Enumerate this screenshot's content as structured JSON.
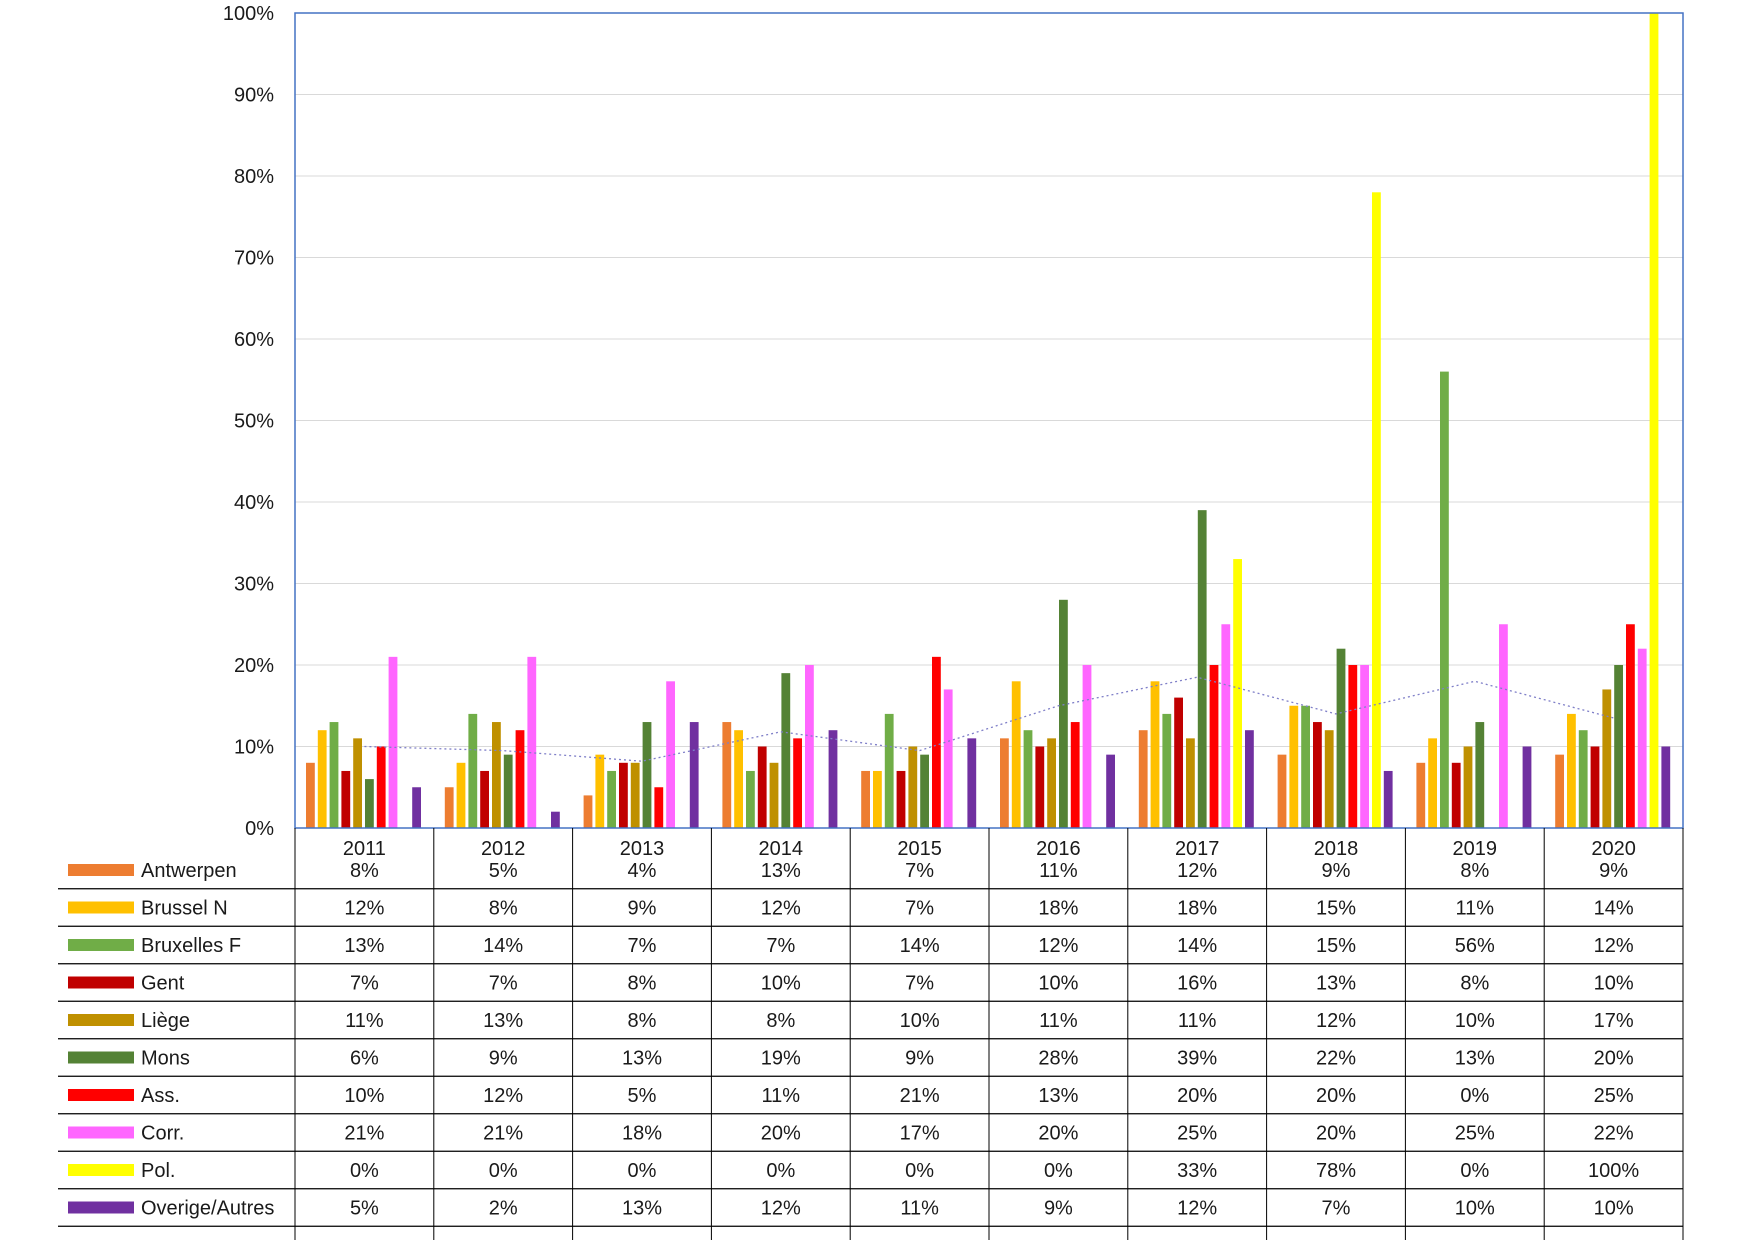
{
  "chart_data": {
    "type": "bar",
    "title": "",
    "xlabel": "",
    "ylabel": "",
    "ylim": [
      0,
      100
    ],
    "y_unit": "%",
    "y_ticks": [
      "0%",
      "10%",
      "20%",
      "30%",
      "40%",
      "50%",
      "60%",
      "70%",
      "80%",
      "90%",
      "100%"
    ],
    "grid": true,
    "legend_placement": "data-table-below",
    "categories": [
      "2011",
      "2012",
      "2013",
      "2014",
      "2015",
      "2016",
      "2017",
      "2018",
      "2019",
      "2020"
    ],
    "series": [
      {
        "name": "Antwerpen",
        "color": "#ED7D31",
        "values": [
          8,
          5,
          4,
          13,
          7,
          11,
          12,
          9,
          8,
          9
        ],
        "labels": [
          "8%",
          "5%",
          "4%",
          "13%",
          "7%",
          "11%",
          "12%",
          "9%",
          "8%",
          "9%"
        ]
      },
      {
        "name": "Brussel N",
        "color": "#FFC000",
        "values": [
          12,
          8,
          9,
          12,
          7,
          18,
          18,
          15,
          11,
          14
        ],
        "labels": [
          "12%",
          "8%",
          "9%",
          "12%",
          "7%",
          "18%",
          "18%",
          "15%",
          "11%",
          "14%"
        ]
      },
      {
        "name": "Bruxelles F",
        "color": "#70AD47",
        "values": [
          13,
          14,
          7,
          7,
          14,
          12,
          14,
          15,
          56,
          12
        ],
        "labels": [
          "13%",
          "14%",
          "7%",
          "7%",
          "14%",
          "12%",
          "14%",
          "15%",
          "56%",
          "12%"
        ]
      },
      {
        "name": "Gent",
        "color": "#C00000",
        "values": [
          7,
          7,
          8,
          10,
          7,
          10,
          16,
          13,
          8,
          10
        ],
        "labels": [
          "7%",
          "7%",
          "8%",
          "10%",
          "7%",
          "10%",
          "16%",
          "13%",
          "8%",
          "10%"
        ]
      },
      {
        "name": "Liège",
        "color": "#BF9000",
        "values": [
          11,
          13,
          8,
          8,
          10,
          11,
          11,
          12,
          10,
          17
        ],
        "labels": [
          "11%",
          "13%",
          "8%",
          "8%",
          "10%",
          "11%",
          "11%",
          "12%",
          "10%",
          "17%"
        ]
      },
      {
        "name": "Mons",
        "color": "#548235",
        "values": [
          6,
          9,
          13,
          19,
          9,
          28,
          39,
          22,
          13,
          20
        ],
        "labels": [
          "6%",
          "9%",
          "13%",
          "19%",
          "9%",
          "28%",
          "39%",
          "22%",
          "13%",
          "20%"
        ]
      },
      {
        "name": "Ass.",
        "color": "#FF0000",
        "values": [
          10,
          12,
          5,
          11,
          21,
          13,
          20,
          20,
          0,
          25
        ],
        "labels": [
          "10%",
          "12%",
          "5%",
          "11%",
          "21%",
          "13%",
          "20%",
          "20%",
          "0%",
          "25%"
        ]
      },
      {
        "name": "Corr.",
        "color": "#FF66FF",
        "values": [
          21,
          21,
          18,
          20,
          17,
          20,
          25,
          20,
          25,
          22
        ],
        "labels": [
          "21%",
          "21%",
          "18%",
          "20%",
          "17%",
          "20%",
          "25%",
          "20%",
          "25%",
          "22%"
        ]
      },
      {
        "name": "Pol.",
        "color": "#FFFF00",
        "values": [
          0,
          0,
          0,
          0,
          0,
          0,
          33,
          78,
          0,
          100
        ],
        "labels": [
          "0%",
          "0%",
          "0%",
          "0%",
          "0%",
          "0%",
          "33%",
          "78%",
          "0%",
          "100%"
        ]
      },
      {
        "name": "Overige/Autres",
        "color": "#7030A0",
        "values": [
          5,
          2,
          13,
          12,
          11,
          9,
          12,
          7,
          10,
          10
        ],
        "labels": [
          "5%",
          "2%",
          "13%",
          "12%",
          "11%",
          "9%",
          "12%",
          "7%",
          "10%",
          "10%"
        ]
      }
    ],
    "trendline": {
      "style": "dotted",
      "color": "#7F7FC8",
      "values": [
        10,
        9.5,
        8.2,
        11.8,
        9.5,
        15,
        18.5,
        14,
        18,
        13.5
      ]
    }
  }
}
